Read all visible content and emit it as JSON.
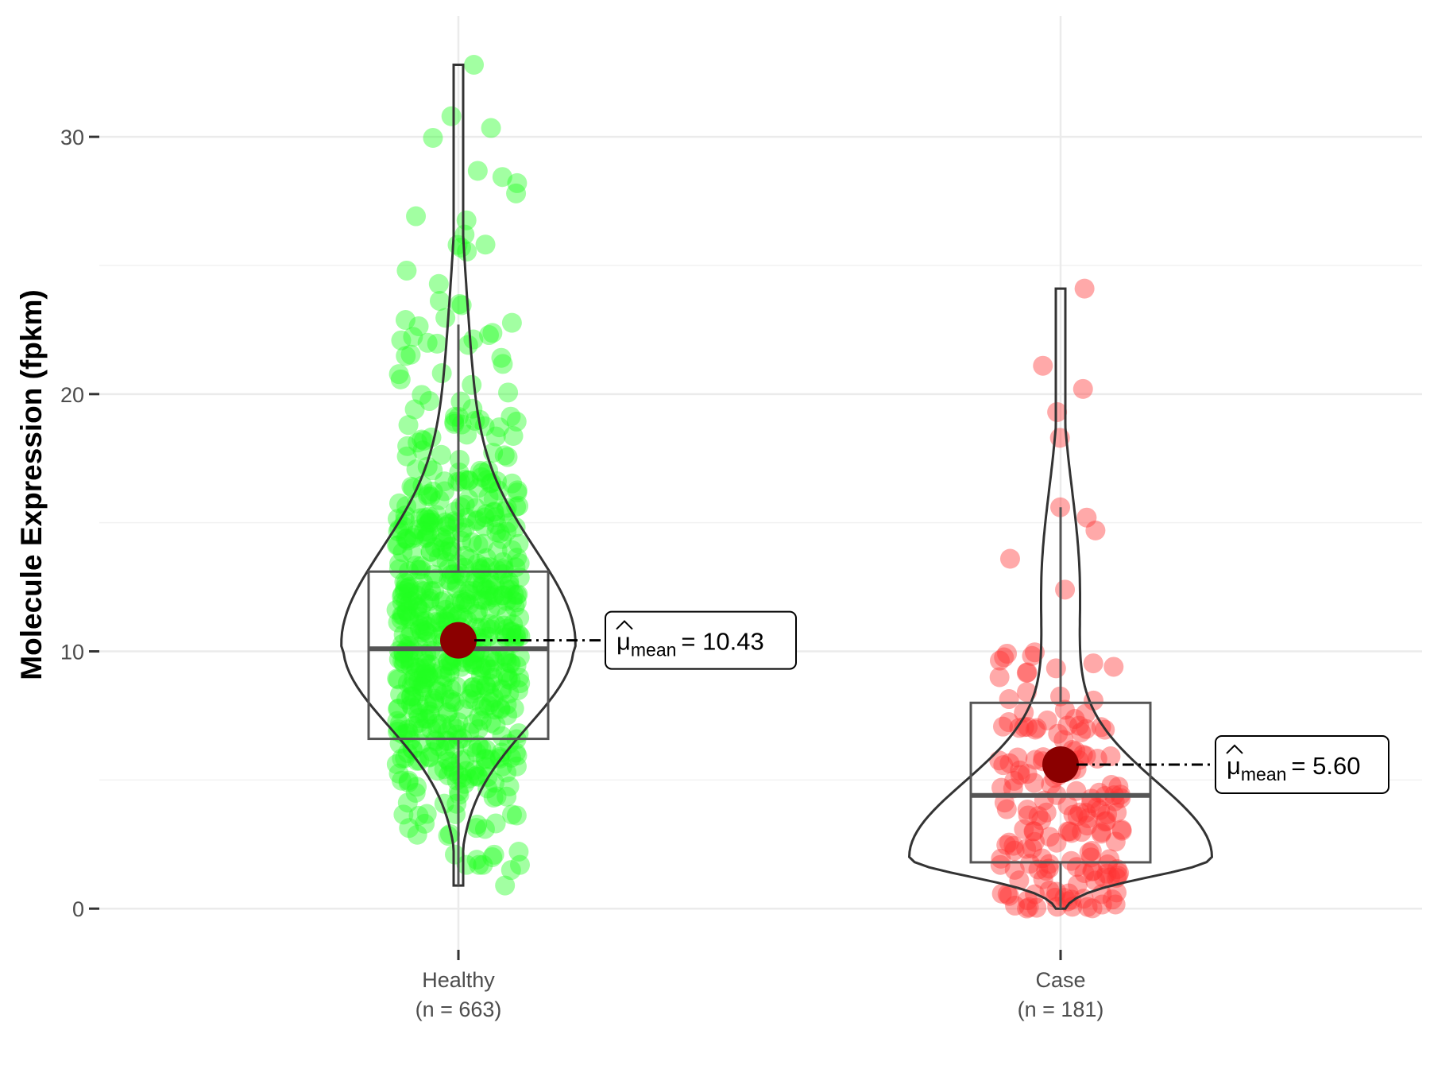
{
  "chart_data": {
    "type": "violin",
    "title": "",
    "xlabel": "",
    "ylabel": "Molecule Expression (fpkm)",
    "ylim": [
      -1.6,
      34.7
    ],
    "y_ticks": [
      0,
      10,
      20,
      30
    ],
    "y_tick_labels": [
      "0",
      "10",
      "20",
      "30"
    ],
    "grid": true,
    "groups": [
      {
        "name": "Healthy",
        "n_label": "(n = 663)",
        "color": "#22ff22",
        "min": 0.9,
        "q1": 6.6,
        "median": 10.1,
        "q3": 13.1,
        "whisker_low": 0.9,
        "whisker_high": 22.7,
        "max": 32.8,
        "mean": 10.43,
        "mean_label_prefix": "μ",
        "mean_label_subscript": "mean",
        "mean_label_value": "= 10.43"
      },
      {
        "name": "Case",
        "n_label": "(n = 181)",
        "color": "#ff3333",
        "min": 0.0,
        "q1": 1.8,
        "median": 4.4,
        "q3": 8.0,
        "whisker_low": 0.0,
        "whisker_high": 15.6,
        "max": 24.1,
        "mean": 5.6,
        "mean_label_prefix": "μ",
        "mean_label_subscript": "mean",
        "mean_label_value": "= 5.60"
      }
    ],
    "colors": {
      "mean_point": "#8b0000",
      "violin_stroke": "#333333",
      "box_stroke": "#555555",
      "grid_major": "#ebebeb",
      "grid_minor": "#f2f2f2"
    }
  }
}
